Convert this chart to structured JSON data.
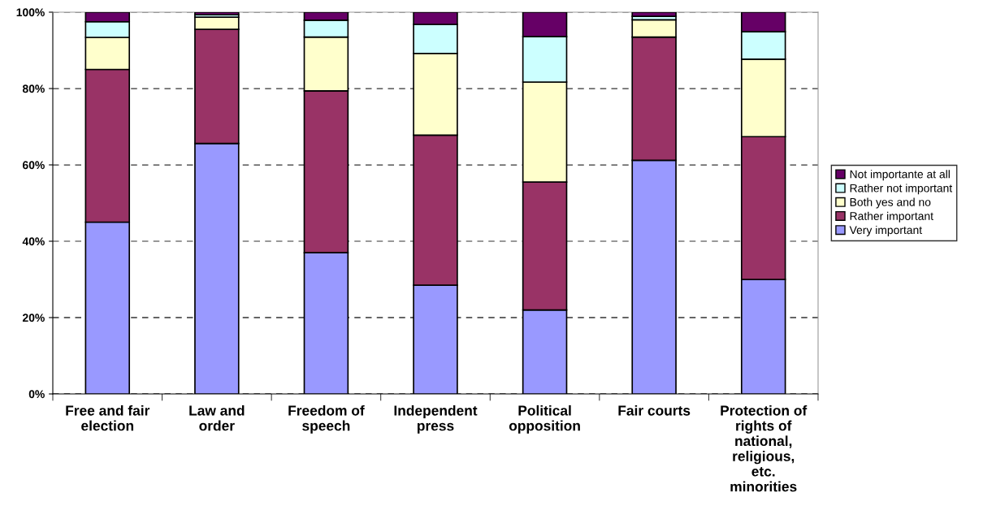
{
  "chart_data": {
    "type": "bar",
    "stacked": true,
    "categories": [
      "Free and fair\nelection",
      "Law and\norder",
      "Freedom of\nspeech",
      "Independent\npress",
      "Political\nopposition",
      "Fair courts",
      "Protection of\nrights of\nnational,\nreligious,\netc.\nminorities"
    ],
    "series": [
      {
        "name": "Very important",
        "color": "#9999ff",
        "values": [
          45,
          65.6,
          37,
          28.5,
          22,
          61.2,
          30
        ]
      },
      {
        "name": "Rather important",
        "color": "#993366",
        "values": [
          40,
          29.9,
          42.4,
          39.3,
          33.5,
          32.3,
          37.4
        ]
      },
      {
        "name": "Both yes and no",
        "color": "#ffffcc",
        "values": [
          8.4,
          3.2,
          14.1,
          21.4,
          26.2,
          4.5,
          20.3
        ]
      },
      {
        "name": "Rather not important",
        "color": "#ccffff",
        "values": [
          4.1,
          0.6,
          4.4,
          7.6,
          11.9,
          0.9,
          7.2
        ]
      },
      {
        "name": "Not importante at all",
        "color": "#660066",
        "values": [
          2.5,
          0.7,
          2.1,
          3.2,
          6.4,
          1.1,
          5.1
        ]
      }
    ],
    "ylim": [
      0,
      100
    ],
    "yticks": [
      {
        "value": 0,
        "label": "0%"
      },
      {
        "value": 20,
        "label": "20%"
      },
      {
        "value": 40,
        "label": "40%"
      },
      {
        "value": 60,
        "label": "60%"
      },
      {
        "value": 80,
        "label": "80%"
      },
      {
        "value": 100,
        "label": "100%"
      }
    ],
    "grid": "y",
    "legend": "right"
  }
}
